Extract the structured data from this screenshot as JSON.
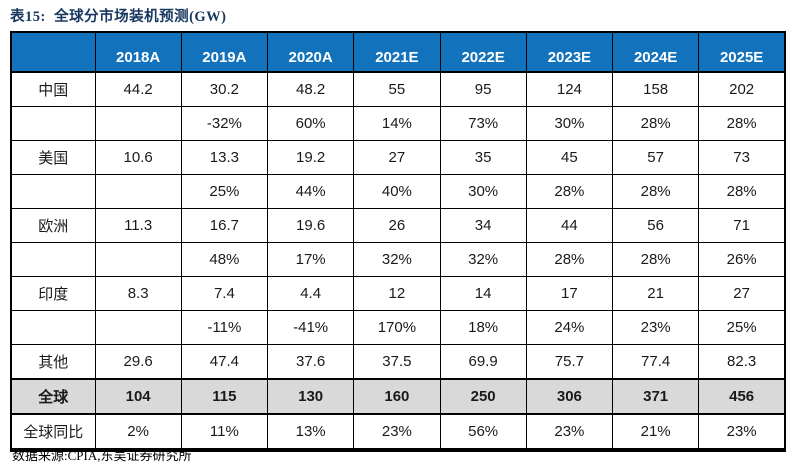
{
  "title": "表15:  全球分市场装机预测(GW)",
  "source_note": "数据来源:CPIA,东吴证券研究所",
  "colors": {
    "header_bg": "#1272BC",
    "header_text": "#FFFFFF",
    "title_color": "#17375E",
    "total_row_bg": "#D9D9D9",
    "border": "#000000"
  },
  "table": {
    "columns": [
      "",
      "2018A",
      "2019A",
      "2020A",
      "2021E",
      "2022E",
      "2023E",
      "2024E",
      "2025E"
    ],
    "rows": [
      {
        "label": "中国",
        "type": "value",
        "cells": [
          "44.2",
          "30.2",
          "48.2",
          "55",
          "95",
          "124",
          "158",
          "202"
        ]
      },
      {
        "label": "",
        "type": "growth",
        "cells": [
          "",
          "-32%",
          "60%",
          "14%",
          "73%",
          "30%",
          "28%",
          "28%"
        ]
      },
      {
        "label": "美国",
        "type": "value",
        "cells": [
          "10.6",
          "13.3",
          "19.2",
          "27",
          "35",
          "45",
          "57",
          "73"
        ]
      },
      {
        "label": "",
        "type": "growth",
        "cells": [
          "",
          "25%",
          "44%",
          "40%",
          "30%",
          "28%",
          "28%",
          "28%"
        ]
      },
      {
        "label": "欧洲",
        "type": "value",
        "cells": [
          "11.3",
          "16.7",
          "19.6",
          "26",
          "34",
          "44",
          "56",
          "71"
        ]
      },
      {
        "label": "",
        "type": "growth",
        "cells": [
          "",
          "48%",
          "17%",
          "32%",
          "32%",
          "28%",
          "28%",
          "26%"
        ]
      },
      {
        "label": "印度",
        "type": "value",
        "cells": [
          "8.3",
          "7.4",
          "4.4",
          "12",
          "14",
          "17",
          "21",
          "27"
        ]
      },
      {
        "label": "",
        "type": "growth",
        "cells": [
          "",
          "-11%",
          "-41%",
          "170%",
          "18%",
          "24%",
          "23%",
          "25%"
        ]
      },
      {
        "label": "其他",
        "type": "value",
        "cells": [
          "29.6",
          "47.4",
          "37.6",
          "37.5",
          "69.9",
          "75.7",
          "77.4",
          "82.3"
        ]
      },
      {
        "label": "全球",
        "type": "total",
        "cells": [
          "104",
          "115",
          "130",
          "160",
          "250",
          "306",
          "371",
          "456"
        ]
      },
      {
        "label": "全球同比",
        "type": "yoy",
        "cells": [
          "2%",
          "11%",
          "13%",
          "23%",
          "56%",
          "23%",
          "21%",
          "23%"
        ]
      }
    ]
  }
}
